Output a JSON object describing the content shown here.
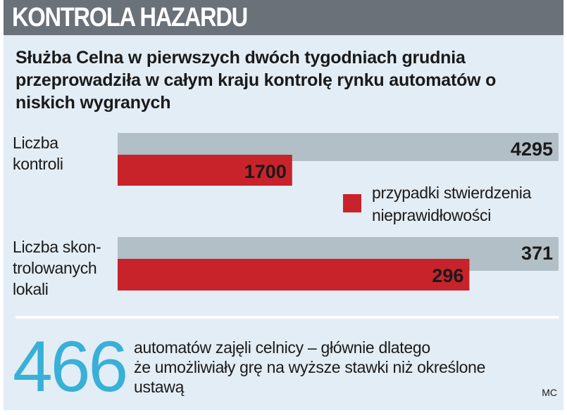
{
  "header": {
    "title": "KONTROLA HAZARDU"
  },
  "subtitle": "Służba Celna w pierwszych dwóch tygodniach grudnia przeprowadziła w całym kraju kontrolę rynku automatów o niskich wygranych",
  "chart_data": {
    "type": "bar",
    "orientation": "horizontal",
    "categories": [
      [
        "Liczba",
        "kontroli"
      ],
      [
        "Liczba skon-",
        "trolowanych",
        "lokali"
      ]
    ],
    "series": [
      {
        "color": "#b3bfc6",
        "values": [
          4295,
          371
        ]
      },
      {
        "name": "przypadki stwierdzenia nieprawidłowości",
        "color": "#c8232b",
        "values": [
          1700,
          296
        ]
      }
    ],
    "value_labels": [
      [
        "4295",
        "1700"
      ],
      [
        "371",
        "296"
      ]
    ],
    "legend": {
      "text": [
        "przypadki stwierdzenia",
        "nieprawidłowości"
      ],
      "placement": "middle-right"
    }
  },
  "bottom": {
    "number": "466",
    "text": [
      "automatów zajęli celnicy – głównie dlatego",
      "że umożliwiały grę na wyższe stawki niż określone",
      "ustawą"
    ]
  },
  "credit": "MC"
}
